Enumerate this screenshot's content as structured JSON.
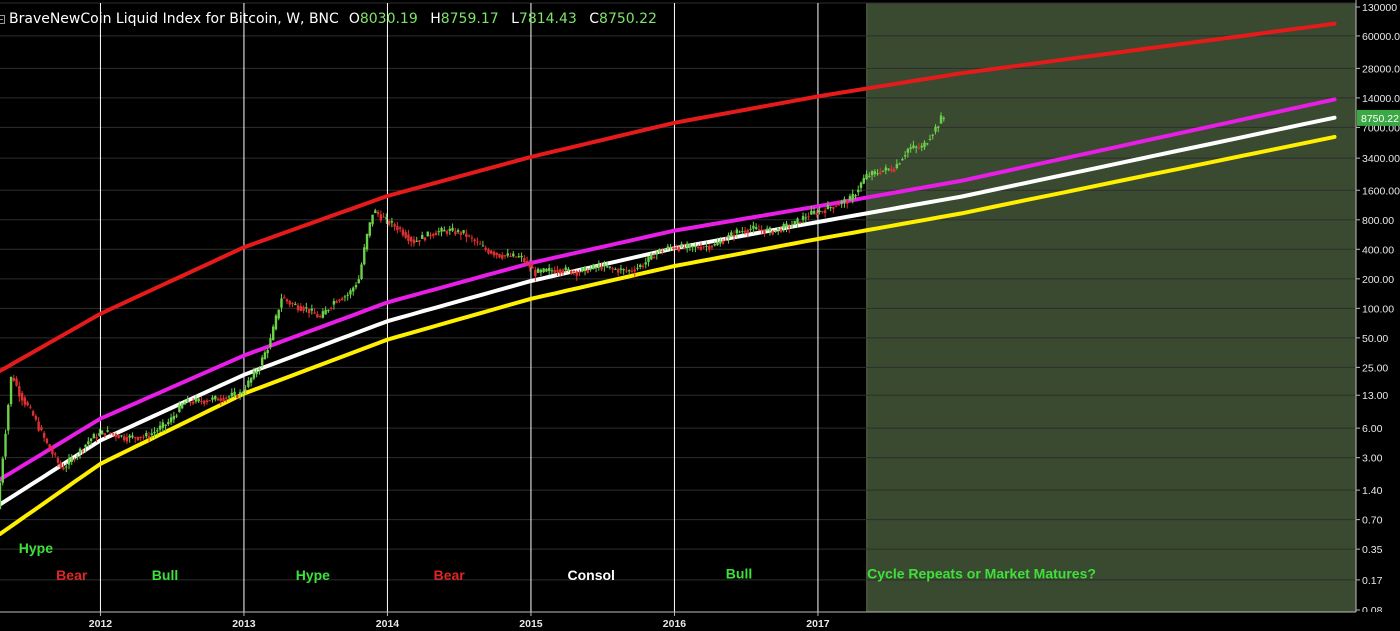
{
  "header": {
    "title": "BraveNewCoin Liquid Index for Bitcoin, W, BNC",
    "ohlc": [
      {
        "key": "O",
        "value": "8030.19"
      },
      {
        "key": "H",
        "value": "8759.17"
      },
      {
        "key": "L",
        "value": "7814.43"
      },
      {
        "key": "C",
        "value": "8750.22"
      }
    ]
  },
  "colors": {
    "background": "#000000",
    "projection_zone": "#3a4a30",
    "grid": "#2e2e2e",
    "year_line": "#ffffff",
    "candle_up": "#6bd04a",
    "candle_down": "#e03030",
    "price_tag": "#3aa845"
  },
  "chart_data": {
    "type": "candlestick",
    "title": "BraveNewCoin Liquid Index for Bitcoin, W, BNC",
    "y_scale": "log",
    "ylim": [
      0.08,
      130000
    ],
    "y_tick_labels": [
      "130000",
      "60000.00",
      "28000.00",
      "14000.00",
      "7000.00",
      "3400.00",
      "1600.00",
      "800.00",
      "400.00",
      "200.00",
      "100.00",
      "50.00",
      "25.00",
      "13.00",
      "6.00",
      "3.00",
      "1.40",
      "0.70",
      "0.35",
      "0.17",
      "0.08"
    ],
    "x_tick_labels": [
      "2012",
      "2013",
      "2014",
      "2015",
      "2016",
      "2017"
    ],
    "xlim": [
      2011.3,
      2020.6
    ],
    "last_price": "8750.22",
    "price_path": [
      [
        2011.3,
        0.9
      ],
      [
        2011.4,
        22
      ],
      [
        2011.45,
        14
      ],
      [
        2011.55,
        8
      ],
      [
        2011.65,
        4
      ],
      [
        2011.75,
        2.3
      ],
      [
        2011.85,
        3.2
      ],
      [
        2011.95,
        4.7
      ],
      [
        2012.05,
        5.5
      ],
      [
        2012.2,
        4.8
      ],
      [
        2012.35,
        5.0
      ],
      [
        2012.5,
        7.0
      ],
      [
        2012.6,
        11
      ],
      [
        2012.75,
        11.5
      ],
      [
        2012.9,
        12.5
      ],
      [
        2013.0,
        13.5
      ],
      [
        2013.12,
        25
      ],
      [
        2013.2,
        45
      ],
      [
        2013.28,
        130
      ],
      [
        2013.35,
        110
      ],
      [
        2013.45,
        100
      ],
      [
        2013.55,
        80
      ],
      [
        2013.65,
        120
      ],
      [
        2013.75,
        140
      ],
      [
        2013.82,
        200
      ],
      [
        2013.87,
        500
      ],
      [
        2013.92,
        1000
      ],
      [
        2014.0,
        800
      ],
      [
        2014.1,
        650
      ],
      [
        2014.2,
        480
      ],
      [
        2014.35,
        600
      ],
      [
        2014.45,
        620
      ],
      [
        2014.55,
        580
      ],
      [
        2014.7,
        400
      ],
      [
        2014.8,
        350
      ],
      [
        2014.95,
        330
      ],
      [
        2015.05,
        230
      ],
      [
        2015.2,
        250
      ],
      [
        2015.35,
        235
      ],
      [
        2015.5,
        270
      ],
      [
        2015.6,
        250
      ],
      [
        2015.7,
        240
      ],
      [
        2015.8,
        280
      ],
      [
        2015.9,
        380
      ],
      [
        2016.0,
        420
      ],
      [
        2016.15,
        420
      ],
      [
        2016.3,
        440
      ],
      [
        2016.45,
        600
      ],
      [
        2016.55,
        650
      ],
      [
        2016.7,
        610
      ],
      [
        2016.85,
        720
      ],
      [
        2016.95,
        900
      ],
      [
        2017.05,
        1000
      ],
      [
        2017.15,
        1150
      ],
      [
        2017.25,
        1300
      ],
      [
        2017.35,
        2200
      ],
      [
        2017.45,
        2500
      ],
      [
        2017.55,
        2700
      ],
      [
        2017.65,
        4300
      ],
      [
        2017.75,
        4400
      ],
      [
        2017.8,
        5800
      ],
      [
        2017.85,
        7300
      ],
      [
        2017.88,
        8750
      ]
    ],
    "projection_zone_start": 2017.34,
    "curves": [
      {
        "color": "#e51b1b",
        "points": [
          [
            2011.3,
            23
          ],
          [
            2012.0,
            88
          ],
          [
            2013.0,
            420
          ],
          [
            2014.0,
            1400
          ],
          [
            2015.0,
            3500
          ],
          [
            2016.0,
            7800
          ],
          [
            2017.0,
            14500
          ],
          [
            2018.0,
            25000
          ],
          [
            2020.6,
            80000
          ]
        ]
      },
      {
        "color": "#e61ee6",
        "points": [
          [
            2011.3,
            1.8
          ],
          [
            2012.0,
            7.5
          ],
          [
            2013.0,
            33
          ],
          [
            2014.0,
            115
          ],
          [
            2015.0,
            290
          ],
          [
            2016.0,
            620
          ],
          [
            2017.0,
            1100
          ],
          [
            2018.0,
            2000
          ],
          [
            2020.6,
            13500
          ]
        ]
      },
      {
        "color": "#ffffff",
        "points": [
          [
            2011.3,
            1.0
          ],
          [
            2012.0,
            4.5
          ],
          [
            2013.0,
            21
          ],
          [
            2014.0,
            74
          ],
          [
            2015.0,
            190
          ],
          [
            2016.0,
            410
          ],
          [
            2017.0,
            760
          ],
          [
            2018.0,
            1380
          ],
          [
            2020.6,
            8800
          ]
        ]
      },
      {
        "color": "#ffef00",
        "points": [
          [
            2011.3,
            0.5
          ],
          [
            2012.0,
            2.6
          ],
          [
            2013.0,
            13.5
          ],
          [
            2014.0,
            48
          ],
          [
            2015.0,
            125
          ],
          [
            2016.0,
            270
          ],
          [
            2017.0,
            510
          ],
          [
            2018.0,
            930
          ],
          [
            2020.6,
            5600
          ]
        ]
      }
    ],
    "annotations": [
      {
        "text": "Hype",
        "color": "#3ee03a",
        "x": 2011.55,
        "y": 0.32
      },
      {
        "text": "Bear",
        "color": "#e02525",
        "x": 2011.8,
        "y": 0.17
      },
      {
        "text": "Bull",
        "color": "#3ee03a",
        "x": 2012.45,
        "y": 0.17
      },
      {
        "text": "Hype",
        "color": "#3ee03a",
        "x": 2013.48,
        "y": 0.17
      },
      {
        "text": "Bear",
        "color": "#e02525",
        "x": 2014.43,
        "y": 0.17
      },
      {
        "text": "Consol",
        "color": "#ffffff",
        "x": 2015.42,
        "y": 0.17
      },
      {
        "text": "Bull",
        "color": "#3ee03a",
        "x": 2016.45,
        "y": 0.175
      },
      {
        "text": "Cycle Repeats or Market Matures?",
        "color": "#3ee03a",
        "x": 2018.14,
        "y": 0.175
      }
    ]
  }
}
